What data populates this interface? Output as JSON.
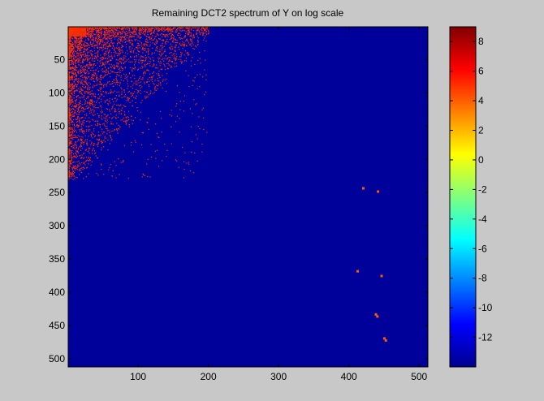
{
  "window": {
    "background_color": "#c8c8c8"
  },
  "chart_data": [
    {
      "type": "heatmap",
      "title": "Remaining DCT2 spectrum of Y on log scale",
      "xlabel": "",
      "ylabel": "",
      "xlim": [
        1,
        512
      ],
      "ylim": [
        1,
        512
      ],
      "y_axis_reversed": true,
      "x_ticks": [
        100,
        200,
        300,
        400,
        500
      ],
      "y_ticks": [
        50,
        100,
        150,
        200,
        250,
        300,
        350,
        400,
        450,
        500
      ],
      "colormap": "jet",
      "clim": [
        -14,
        9
      ],
      "background_value": -13.8,
      "background_color": "#00009a",
      "hotspot_color": "#ff3000",
      "description_regions": [
        {
          "region": "low-frequency corner",
          "x_range": [
            1,
            200
          ],
          "y_range": [
            1,
            230
          ],
          "value_approx": 6.3
        }
      ],
      "isolated_points": [
        {
          "x": 420,
          "y": 243,
          "value": 6
        },
        {
          "x": 441,
          "y": 248,
          "value": 6
        },
        {
          "x": 412,
          "y": 368,
          "value": 6
        },
        {
          "x": 446,
          "y": 375,
          "value": 6
        },
        {
          "x": 438,
          "y": 433,
          "value": 6
        },
        {
          "x": 440,
          "y": 436,
          "value": 6
        },
        {
          "x": 450,
          "y": 469,
          "value": 6
        },
        {
          "x": 452,
          "y": 472,
          "value": 6
        }
      ],
      "grid": false
    },
    {
      "type": "colorbar",
      "colormap": "jet",
      "range": [
        -14,
        9
      ],
      "ticks": [
        8,
        6,
        4,
        2,
        0,
        -2,
        -4,
        -6,
        -8,
        -10,
        -12
      ]
    }
  ]
}
